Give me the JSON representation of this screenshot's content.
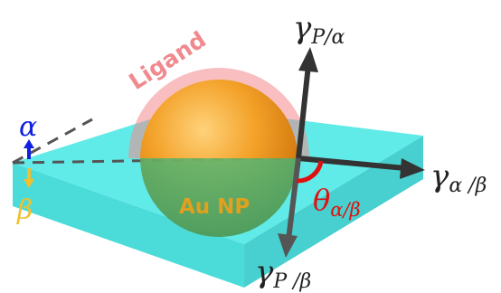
{
  "labels": {
    "ligand": "Ligand",
    "particle": "Au NP",
    "alpha": "α",
    "beta": "β",
    "gamma_p_alpha_main": "γ",
    "gamma_p_alpha_sub": "P/α",
    "gamma_alpha_beta_main": "γ",
    "gamma_alpha_beta_sub": "α /β",
    "gamma_p_beta_main": "γ",
    "gamma_p_beta_sub": "P /β",
    "theta_main": "θ",
    "theta_sub": "α/β"
  },
  "colors": {
    "slab": "#33e3e0",
    "ligand_shell": "#f08a8e",
    "gold": "#f19a1c",
    "arrow": "#333333",
    "alpha_arrow": "#1020e0",
    "beta_arrow": "#f0c030",
    "theta": "#e01010"
  }
}
